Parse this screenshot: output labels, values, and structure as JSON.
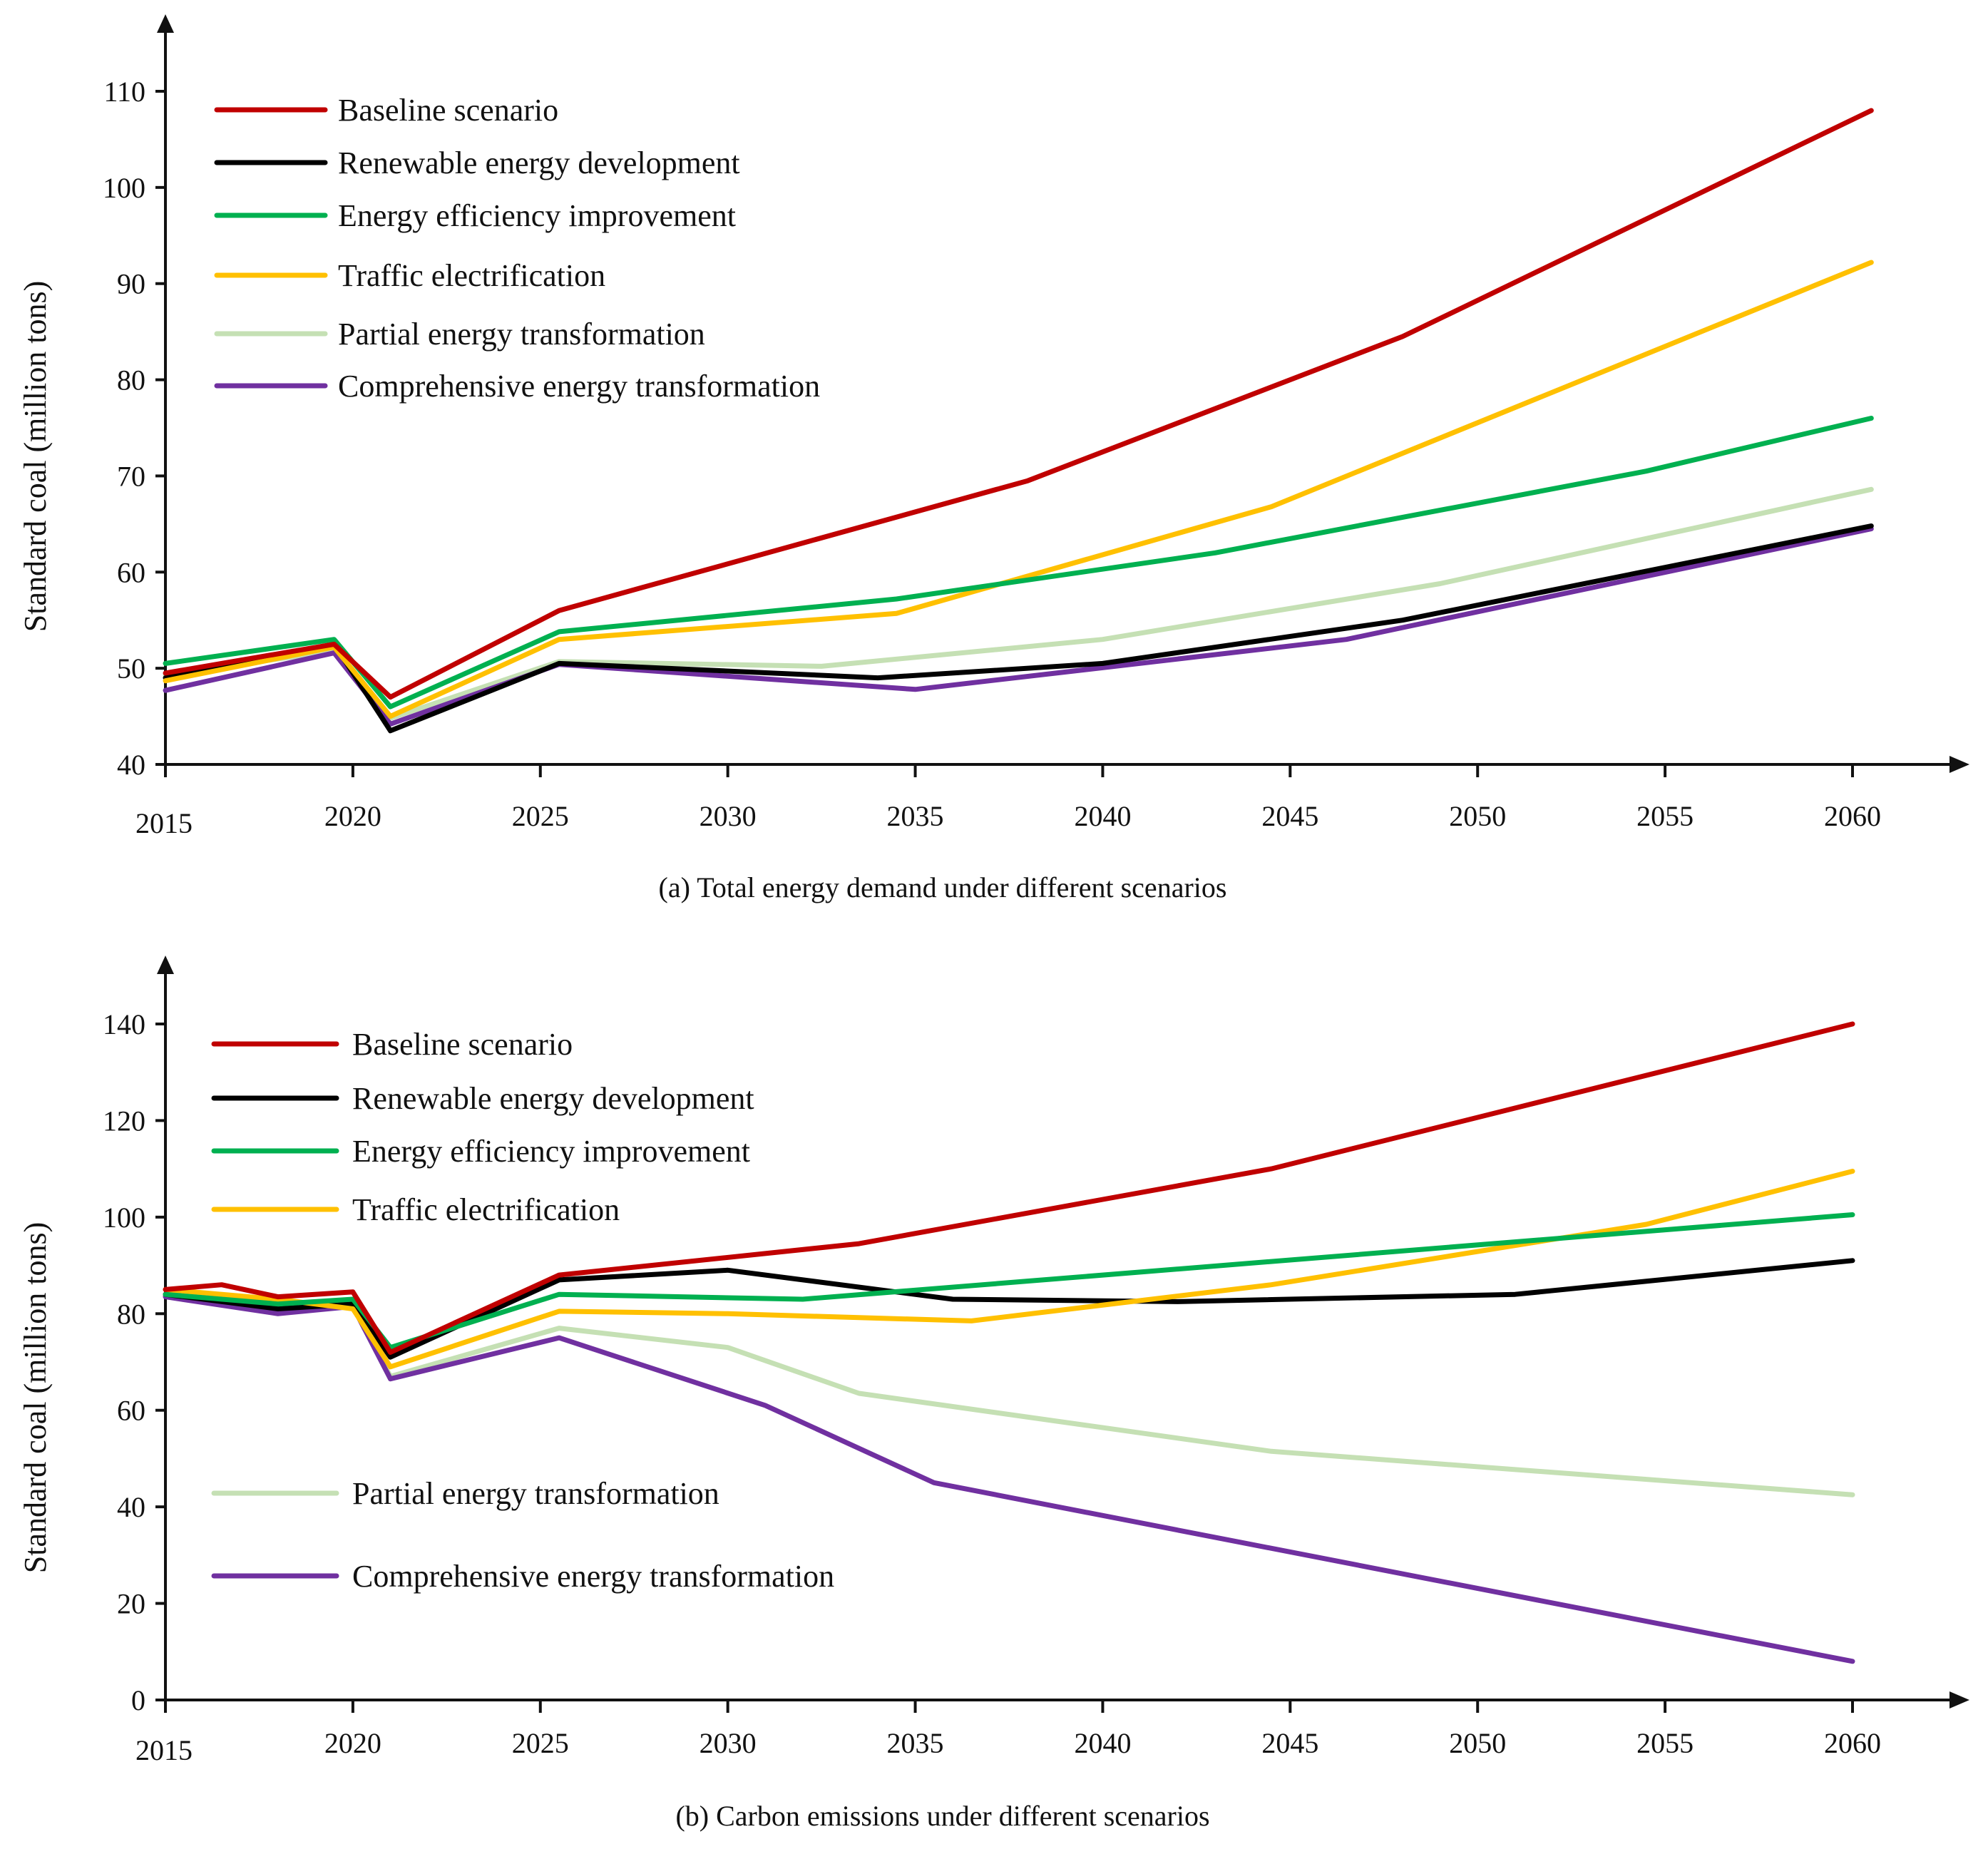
{
  "chart_data": [
    {
      "type": "line",
      "caption": "(a) Total energy demand under different scenarios",
      "ylabel": "Standard coal (million tons)",
      "xlabel": "",
      "ylim": [
        40,
        115
      ],
      "yticks": [
        40,
        50,
        60,
        70,
        80,
        90,
        100,
        110
      ],
      "xlim": [
        2015,
        2063
      ],
      "xticks": [
        2015,
        2020,
        2025,
        2030,
        2035,
        2040,
        2045,
        2050,
        2055,
        2060
      ],
      "legend_position": "top-left",
      "series": [
        {
          "name": "Baseline scenario",
          "color": "#C00000",
          "x": [
            2015,
            2019.5,
            2021,
            2025.5,
            2038,
            2048,
            2060.5
          ],
          "values": [
            49.5,
            52.5,
            47,
            56,
            69.5,
            84.5,
            108
          ]
        },
        {
          "name": "Renewable energy development",
          "color": "#000000",
          "x": [
            2015,
            2019.5,
            2021,
            2025.5,
            2034,
            2040,
            2048,
            2060.5
          ],
          "values": [
            49,
            52.5,
            43.5,
            50.5,
            49,
            50.5,
            55,
            64.8
          ]
        },
        {
          "name": "Energy efficiency improvement",
          "color": "#00B050",
          "x": [
            2015,
            2019.5,
            2021,
            2025.5,
            2034.5,
            2043,
            2054.5,
            2060.5
          ],
          "values": [
            50.5,
            53,
            46,
            53.8,
            57.2,
            62,
            70.5,
            76
          ]
        },
        {
          "name": "Traffic electrification",
          "color": "#FFC000",
          "x": [
            2015,
            2019.5,
            2021,
            2025.5,
            2034.5,
            2044.5,
            2060.5
          ],
          "values": [
            48.7,
            52.2,
            45,
            53,
            55.7,
            66.8,
            92.2
          ]
        },
        {
          "name": "Partial energy transformation",
          "color": "#C5E0B4",
          "x": [
            2015,
            2019.5,
            2021,
            2025.5,
            2032.5,
            2040,
            2049,
            2060.5
          ],
          "values": [
            49.3,
            51.8,
            44.8,
            50.7,
            50.2,
            53,
            58.8,
            68.6
          ]
        },
        {
          "name": "Comprehensive energy transformation",
          "color": "#7030A0",
          "x": [
            2015,
            2019.5,
            2021,
            2025.5,
            2035,
            2046.5,
            2060.5
          ],
          "values": [
            47.7,
            51.6,
            44.2,
            50.4,
            47.8,
            53,
            64.5
          ]
        }
      ]
    },
    {
      "type": "line",
      "caption": "(b) Carbon emissions under different scenarios",
      "ylabel": "Standard coal (million tons)",
      "xlabel": "",
      "ylim": [
        0,
        150
      ],
      "yticks": [
        0,
        20,
        40,
        60,
        80,
        100,
        120,
        140
      ],
      "xlim": [
        2015,
        2063
      ],
      "xticks": [
        2015,
        2020,
        2025,
        2030,
        2035,
        2040,
        2045,
        2050,
        2055,
        2060
      ],
      "legend_position": "top-left and lower-left",
      "series": [
        {
          "name": "Baseline scenario",
          "color": "#C00000",
          "x": [
            2015,
            2016.5,
            2018,
            2020,
            2021,
            2025.5,
            2033.5,
            2044.5,
            2060
          ],
          "values": [
            85,
            86,
            83.5,
            84.5,
            72,
            88,
            94.5,
            110,
            140
          ]
        },
        {
          "name": "Renewable energy development",
          "color": "#000000",
          "x": [
            2015,
            2018,
            2020,
            2021,
            2025.5,
            2030,
            2036,
            2042,
            2051,
            2060
          ],
          "values": [
            84,
            81,
            82,
            71,
            87,
            89,
            83,
            82.5,
            84,
            91
          ]
        },
        {
          "name": "Energy efficiency improvement",
          "color": "#00B050",
          "x": [
            2015,
            2018,
            2020,
            2021,
            2025.5,
            2032,
            2060
          ],
          "values": [
            84,
            82,
            83,
            73,
            84,
            83,
            100.5
          ]
        },
        {
          "name": "Traffic electrification",
          "color": "#FFC000",
          "x": [
            2015,
            2018,
            2020,
            2021,
            2025.5,
            2030,
            2036.5,
            2044.5,
            2054.5,
            2060
          ],
          "values": [
            85,
            83,
            81,
            69,
            80.5,
            80,
            78.5,
            86,
            98.5,
            109.5
          ]
        },
        {
          "name": "Partial energy transformation",
          "color": "#C5E0B4",
          "x": [
            2015,
            2018,
            2020,
            2021,
            2025.5,
            2030,
            2033.5,
            2044.5,
            2060
          ],
          "values": [
            84,
            81,
            81.5,
            67,
            77,
            73,
            63.5,
            51.5,
            42.5
          ]
        },
        {
          "name": "Comprehensive energy transformation",
          "color": "#7030A0",
          "x": [
            2015,
            2018,
            2020,
            2021,
            2025.5,
            2031,
            2035.5,
            2060
          ],
          "values": [
            83.5,
            80,
            81.5,
            66.5,
            75,
            61,
            45,
            8
          ]
        }
      ]
    }
  ]
}
